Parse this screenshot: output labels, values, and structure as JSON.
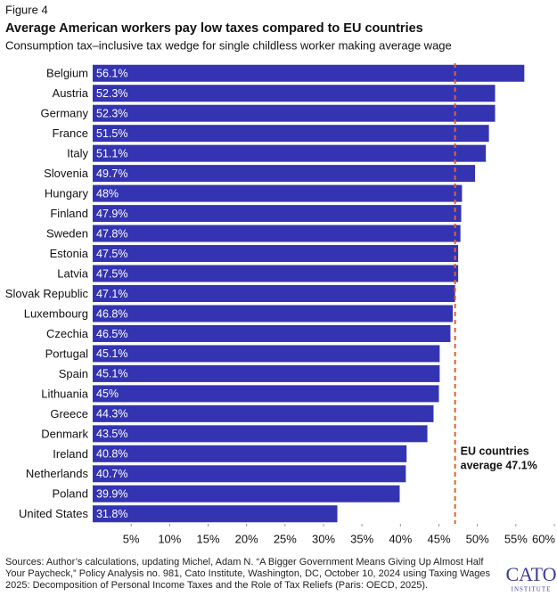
{
  "chart_data": {
    "type": "bar",
    "orientation": "horizontal",
    "figure_label": "Figure 4",
    "title": "Average American workers pay low taxes compared to EU countries",
    "subtitle": "Consumption tax–inclusive tax wedge for single childless worker making average wage",
    "categories": [
      "Belgium",
      "Austria",
      "Germany",
      "France",
      "Italy",
      "Slovenia",
      "Hungary",
      "Finland",
      "Sweden",
      "Estonia",
      "Latvia",
      "Slovak Republic",
      "Luxembourg",
      "Czechia",
      "Portugal",
      "Spain",
      "Lithuania",
      "Greece",
      "Denmark",
      "Ireland",
      "Netherlands",
      "Poland",
      "United States"
    ],
    "values": [
      56.1,
      52.3,
      52.3,
      51.5,
      51.1,
      49.7,
      48,
      47.9,
      47.8,
      47.5,
      47.5,
      47.1,
      46.8,
      46.5,
      45.1,
      45.1,
      45,
      44.3,
      43.5,
      40.8,
      40.7,
      39.9,
      31.8
    ],
    "value_labels": [
      "56.1%",
      "52.3%",
      "52.3%",
      "51.5%",
      "51.1%",
      "49.7%",
      "48%",
      "47.9%",
      "47.8%",
      "47.5%",
      "47.5%",
      "47.1%",
      "46.8%",
      "46.5%",
      "45.1%",
      "45.1%",
      "45%",
      "44.3%",
      "43.5%",
      "40.8%",
      "40.7%",
      "39.9%",
      "31.8%"
    ],
    "color": "#3434b2",
    "xlim": [
      0,
      60
    ],
    "xticks": [
      {
        "value": 5,
        "label": "5%"
      },
      {
        "value": 10,
        "label": "10%"
      },
      {
        "value": 15,
        "label": "15%"
      },
      {
        "value": 20,
        "label": "20%"
      },
      {
        "value": 25,
        "label": "25%"
      },
      {
        "value": 30,
        "label": "30%"
      },
      {
        "value": 35,
        "label": "35%"
      },
      {
        "value": 40,
        "label": "40%"
      },
      {
        "value": 45,
        "label": "45%"
      },
      {
        "value": 50,
        "label": "50%"
      },
      {
        "value": 55,
        "label": "55%"
      },
      {
        "value": 60,
        "label": "60%"
      }
    ],
    "reference_line": {
      "value": 47.1,
      "color": "#e0622a",
      "annotation": [
        "EU countries",
        "average 47.1%"
      ]
    },
    "source": [
      "Sources: Author’s calculations, updating Michel, Adam N. “A Bigger Government Means Giving Up Almost Half",
      "Your Paycheck,” Policy Analysis no. 981, Cato Institute, Washington, DC, October 10, 2024 using Taxing Wages",
      "2025: Decomposition of Personal Income Taxes and the Role of Tax Reliefs (Paris: OECD, 2025)."
    ],
    "logo": [
      "CATO",
      "INSTITUTE"
    ]
  }
}
